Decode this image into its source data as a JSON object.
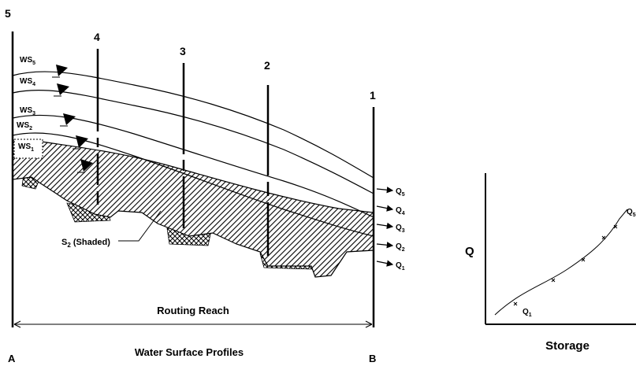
{
  "sections": {
    "s5": "5",
    "s4": "4",
    "s3": "3",
    "s2": "2",
    "s1": "1"
  },
  "water_surfaces": [
    {
      "base": "WS",
      "sub": "5"
    },
    {
      "base": "WS",
      "sub": "4"
    },
    {
      "base": "WS",
      "sub": "3"
    },
    {
      "base": "WS",
      "sub": "2"
    },
    {
      "base": "WS",
      "sub": "1"
    }
  ],
  "discharges": [
    {
      "base": "Q",
      "sub": "5"
    },
    {
      "base": "Q",
      "sub": "4"
    },
    {
      "base": "Q",
      "sub": "3"
    },
    {
      "base": "Q",
      "sub": "2"
    },
    {
      "base": "Q",
      "sub": "1"
    }
  ],
  "storage_label": {
    "base": "S",
    "sub": "2",
    "rest": " (Shaded)"
  },
  "routing_reach": "Routing Reach",
  "caption": "Water Surface Profiles",
  "point_a": "A",
  "point_b": "B",
  "graph": {
    "y_label": "Q",
    "x_label": "Storage",
    "start_label": {
      "base": "Q",
      "sub": "1"
    },
    "end_label": {
      "base": "Q",
      "sub": "5"
    }
  }
}
